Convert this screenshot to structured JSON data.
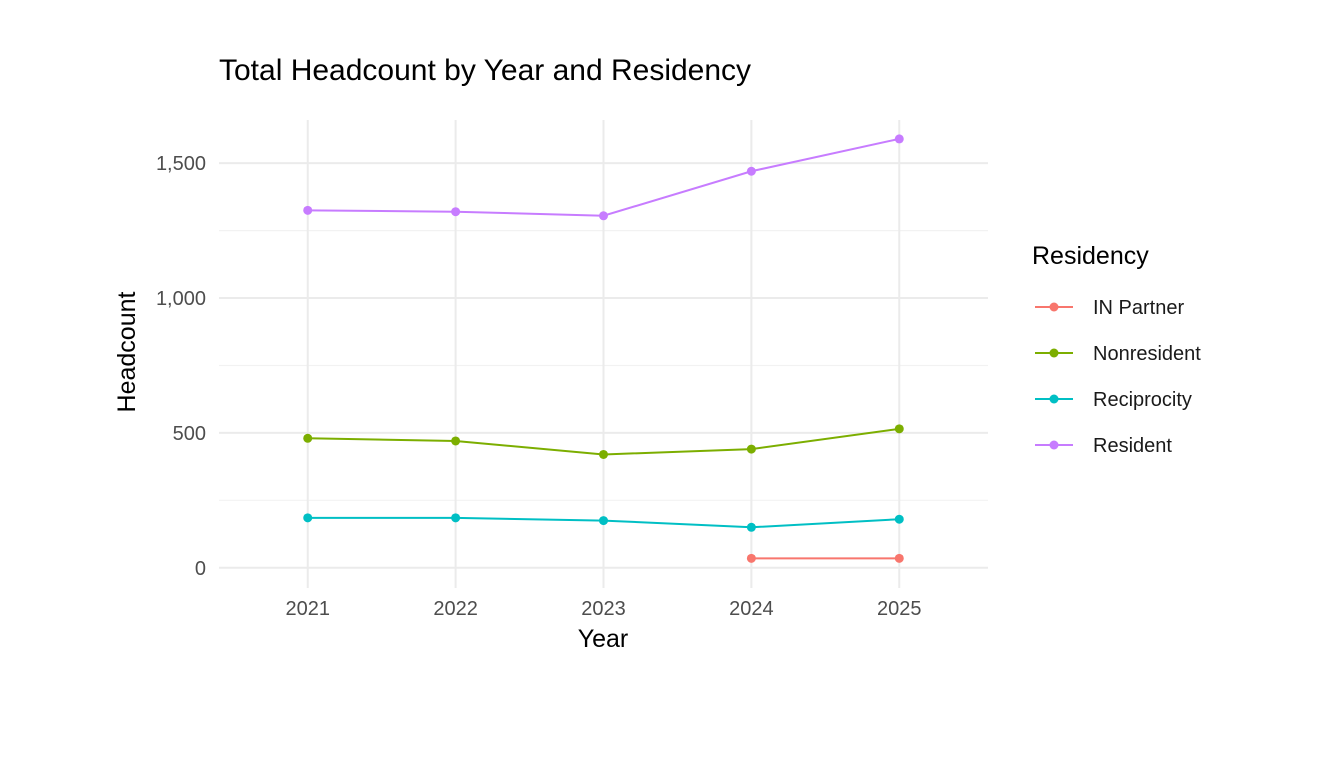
{
  "chart_data": {
    "type": "line",
    "title": "Total Headcount by Year and Residency",
    "xlabel": "Year",
    "ylabel": "Headcount",
    "x": [
      2021,
      2022,
      2023,
      2024,
      2025
    ],
    "x_tick_labels": [
      "2021",
      "2022",
      "2023",
      "2024",
      "2025"
    ],
    "xlim": [
      2020.4,
      2025.6
    ],
    "ylim": [
      -75,
      1660
    ],
    "y_ticks": [
      0,
      500,
      1000,
      1500
    ],
    "y_tick_labels": [
      "0",
      "500",
      "1,000",
      "1,500"
    ],
    "grid": true,
    "legend_title": "Residency",
    "legend_position": "right",
    "series": [
      {
        "name": "IN Partner",
        "color": "#F8766D",
        "values": [
          null,
          null,
          null,
          35,
          35
        ]
      },
      {
        "name": "Nonresident",
        "color": "#7CAE00",
        "values": [
          480,
          470,
          420,
          440,
          515
        ]
      },
      {
        "name": "Reciprocity",
        "color": "#00BFC4",
        "values": [
          185,
          185,
          175,
          150,
          180
        ]
      },
      {
        "name": "Resident",
        "color": "#C77CFF",
        "values": [
          1325,
          1320,
          1305,
          1470,
          1590
        ]
      }
    ]
  }
}
